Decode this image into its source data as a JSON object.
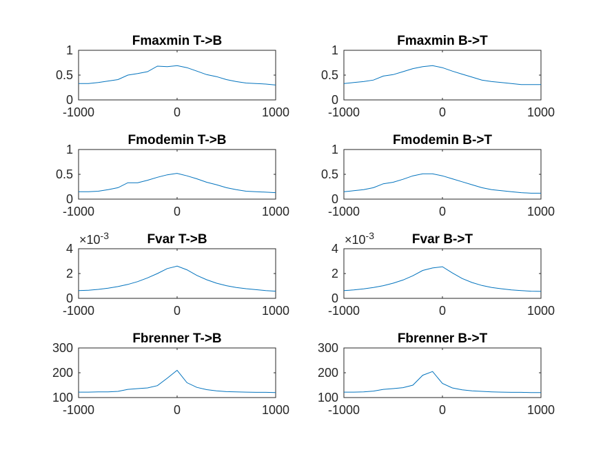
{
  "chart_data": [
    {
      "type": "line",
      "title": "Fmaxmin T->B",
      "xlim": [
        -1000,
        1000
      ],
      "ylim": [
        0,
        1
      ],
      "xticks": [
        "-1000",
        "0",
        "1000"
      ],
      "yticks": [
        "0",
        "0.5",
        "1"
      ],
      "multiplier": "",
      "color": "#0072BD",
      "x": [
        -1000,
        -900,
        -800,
        -700,
        -600,
        -500,
        -400,
        -300,
        -200,
        -100,
        0,
        100,
        200,
        300,
        400,
        500,
        600,
        700,
        800,
        900,
        1000
      ],
      "y": [
        0.33,
        0.33,
        0.35,
        0.38,
        0.41,
        0.5,
        0.53,
        0.57,
        0.68,
        0.67,
        0.69,
        0.65,
        0.58,
        0.51,
        0.47,
        0.41,
        0.37,
        0.34,
        0.33,
        0.32,
        0.3
      ]
    },
    {
      "type": "line",
      "title": "Fmaxmin B->T",
      "xlim": [
        -1000,
        1000
      ],
      "ylim": [
        0,
        1
      ],
      "xticks": [
        "-1000",
        "0",
        "1000"
      ],
      "yticks": [
        "0",
        "0.5",
        "1"
      ],
      "multiplier": "",
      "color": "#0072BD",
      "x": [
        -1000,
        -900,
        -800,
        -700,
        -600,
        -500,
        -400,
        -300,
        -200,
        -100,
        0,
        100,
        200,
        300,
        400,
        500,
        600,
        700,
        800,
        900,
        1000
      ],
      "y": [
        0.33,
        0.35,
        0.37,
        0.4,
        0.48,
        0.51,
        0.57,
        0.63,
        0.67,
        0.69,
        0.65,
        0.58,
        0.52,
        0.46,
        0.4,
        0.37,
        0.35,
        0.33,
        0.31,
        0.31,
        0.31
      ]
    },
    {
      "type": "line",
      "title": "Fmodemin T->B",
      "xlim": [
        -1000,
        1000
      ],
      "ylim": [
        0,
        1
      ],
      "xticks": [
        "-1000",
        "0",
        "1000"
      ],
      "yticks": [
        "0",
        "0.5",
        "1"
      ],
      "multiplier": "",
      "color": "#0072BD",
      "x": [
        -1000,
        -900,
        -800,
        -700,
        -600,
        -500,
        -400,
        -300,
        -200,
        -100,
        0,
        100,
        200,
        300,
        400,
        500,
        600,
        700,
        800,
        900,
        1000
      ],
      "y": [
        0.15,
        0.15,
        0.16,
        0.19,
        0.23,
        0.33,
        0.33,
        0.38,
        0.44,
        0.49,
        0.52,
        0.47,
        0.41,
        0.34,
        0.29,
        0.23,
        0.19,
        0.16,
        0.15,
        0.14,
        0.13
      ]
    },
    {
      "type": "line",
      "title": "Fmodemin B->T",
      "xlim": [
        -1000,
        1000
      ],
      "ylim": [
        0,
        1
      ],
      "xticks": [
        "-1000",
        "0",
        "1000"
      ],
      "yticks": [
        "0",
        "0.5",
        "1"
      ],
      "multiplier": "",
      "color": "#0072BD",
      "x": [
        -1000,
        -900,
        -800,
        -700,
        -600,
        -500,
        -400,
        -300,
        -200,
        -100,
        0,
        100,
        200,
        300,
        400,
        500,
        600,
        700,
        800,
        900,
        1000
      ],
      "y": [
        0.15,
        0.17,
        0.19,
        0.23,
        0.31,
        0.34,
        0.4,
        0.47,
        0.51,
        0.51,
        0.47,
        0.41,
        0.35,
        0.29,
        0.23,
        0.19,
        0.17,
        0.15,
        0.13,
        0.12,
        0.12
      ]
    },
    {
      "type": "line",
      "title": "Fvar T->B",
      "xlim": [
        -1000,
        1000
      ],
      "ylim": [
        0,
        4
      ],
      "xticks": [
        "-1000",
        "0",
        "1000"
      ],
      "yticks": [
        "0",
        "2",
        "4"
      ],
      "multiplier": "×10-3",
      "color": "#0072BD",
      "x": [
        -1000,
        -900,
        -800,
        -700,
        -600,
        -500,
        -400,
        -300,
        -200,
        -100,
        0,
        100,
        200,
        300,
        400,
        500,
        600,
        700,
        800,
        900,
        1000
      ],
      "y": [
        0.62,
        0.65,
        0.72,
        0.82,
        0.95,
        1.12,
        1.35,
        1.65,
        2.0,
        2.4,
        2.6,
        2.3,
        1.85,
        1.5,
        1.22,
        1.02,
        0.88,
        0.78,
        0.7,
        0.63,
        0.58
      ]
    },
    {
      "type": "line",
      "title": "Fvar B->T",
      "xlim": [
        -1000,
        1000
      ],
      "ylim": [
        0,
        4
      ],
      "xticks": [
        "-1000",
        "0",
        "1000"
      ],
      "yticks": [
        "0",
        "2",
        "4"
      ],
      "multiplier": "×10-3",
      "color": "#0072BD",
      "x": [
        -1000,
        -900,
        -800,
        -700,
        -600,
        -500,
        -400,
        -300,
        -200,
        -100,
        0,
        100,
        200,
        300,
        400,
        500,
        600,
        700,
        800,
        900,
        1000
      ],
      "y": [
        0.62,
        0.68,
        0.76,
        0.87,
        1.02,
        1.22,
        1.48,
        1.82,
        2.25,
        2.45,
        2.55,
        2.05,
        1.6,
        1.28,
        1.04,
        0.88,
        0.77,
        0.68,
        0.62,
        0.58,
        0.56
      ]
    },
    {
      "type": "line",
      "title": "Fbrenner T->B",
      "xlim": [
        -1000,
        1000
      ],
      "ylim": [
        100,
        300
      ],
      "xticks": [
        "-1000",
        "0",
        "1000"
      ],
      "yticks": [
        "100",
        "200",
        "300"
      ],
      "multiplier": "",
      "color": "#0072BD",
      "x": [
        -1000,
        -900,
        -800,
        -700,
        -600,
        -500,
        -400,
        -300,
        -200,
        -100,
        0,
        100,
        200,
        300,
        400,
        500,
        600,
        700,
        800,
        900,
        1000
      ],
      "y": [
        122,
        122,
        123,
        123,
        125,
        133,
        136,
        139,
        148,
        178,
        210,
        160,
        141,
        132,
        127,
        124,
        123,
        122,
        121,
        121,
        120
      ]
    },
    {
      "type": "line",
      "title": "Fbrenner B->T",
      "xlim": [
        -1000,
        1000
      ],
      "ylim": [
        100,
        300
      ],
      "xticks": [
        "-1000",
        "0",
        "1000"
      ],
      "yticks": [
        "100",
        "200",
        "300"
      ],
      "multiplier": "",
      "color": "#0072BD",
      "x": [
        -1000,
        -900,
        -800,
        -700,
        -600,
        -500,
        -400,
        -300,
        -200,
        -100,
        0,
        100,
        200,
        300,
        400,
        500,
        600,
        700,
        800,
        900,
        1000
      ],
      "y": [
        122,
        122,
        123,
        126,
        133,
        136,
        140,
        150,
        190,
        205,
        157,
        139,
        131,
        127,
        125,
        123,
        122,
        121,
        121,
        120,
        120
      ]
    }
  ]
}
